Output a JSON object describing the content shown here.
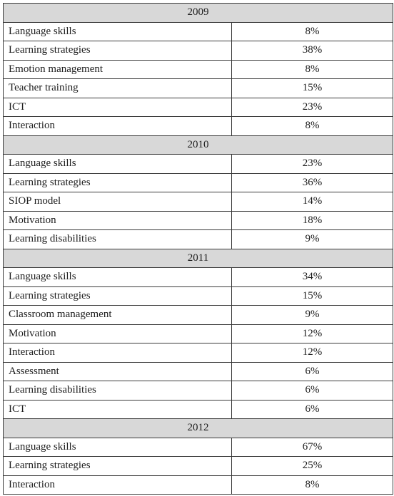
{
  "groups": [
    {
      "year": "2009",
      "rows": [
        {
          "label": "Language skills",
          "value": "8%"
        },
        {
          "label": "Learning strategies",
          "value": "38%"
        },
        {
          "label": "Emotion management",
          "value": "8%"
        },
        {
          "label": "Teacher training",
          "value": "15%"
        },
        {
          "label": "ICT",
          "value": "23%"
        },
        {
          "label": "Interaction",
          "value": "8%"
        }
      ]
    },
    {
      "year": "2010",
      "rows": [
        {
          "label": "Language skills",
          "value": "23%"
        },
        {
          "label": "Learning strategies",
          "value": "36%"
        },
        {
          "label": "SIOP model",
          "value": "14%"
        },
        {
          "label": "Motivation",
          "value": "18%"
        },
        {
          "label": "Learning disabilities",
          "value": "9%"
        }
      ]
    },
    {
      "year": "2011",
      "rows": [
        {
          "label": "Language skills",
          "value": "34%"
        },
        {
          "label": "Learning strategies",
          "value": "15%"
        },
        {
          "label": "Classroom management",
          "value": "9%"
        },
        {
          "label": "Motivation",
          "value": "12%"
        },
        {
          "label": "Interaction",
          "value": "12%"
        },
        {
          "label": "Assessment",
          "value": "6%"
        },
        {
          "label": "Learning disabilities",
          "value": "6%"
        },
        {
          "label": "ICT",
          "value": "6%"
        }
      ]
    },
    {
      "year": "2012",
      "rows": [
        {
          "label": "Language skills",
          "value": "67%"
        },
        {
          "label": "Learning strategies",
          "value": "25%"
        },
        {
          "label": "Interaction",
          "value": "8%"
        }
      ]
    }
  ]
}
